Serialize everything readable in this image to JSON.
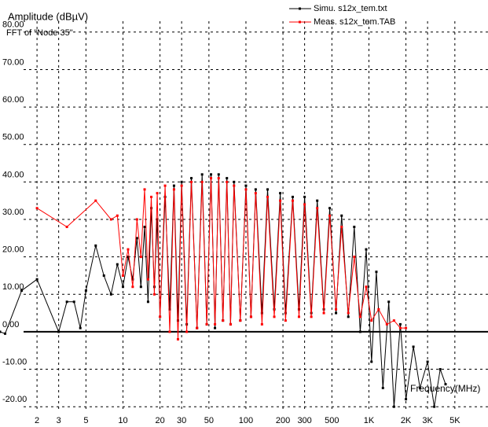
{
  "chart_data": {
    "type": "line",
    "title": "Amplitude (dBµV)",
    "subtitle": "FFT of \"Node 35\"",
    "x_label": "Frequency(MHz)",
    "log_x": true,
    "grid": true,
    "legend": "top-right",
    "xlim": [
      1,
      9300
    ],
    "ylim": [
      -20.8,
      80.8
    ],
    "xticks": [
      2,
      3,
      5,
      10,
      20,
      30,
      50,
      100,
      200,
      300,
      500,
      {
        "value": 1000,
        "label": "1K"
      },
      {
        "value": 2000,
        "label": "2K"
      },
      {
        "value": 3000,
        "label": "3K"
      },
      {
        "value": 5000,
        "label": "5K"
      }
    ],
    "yticks": [
      {
        "value": 80,
        "label": "80.00"
      },
      {
        "value": 70,
        "label": "70.00"
      },
      {
        "value": 60,
        "label": "60.00"
      },
      {
        "value": 50,
        "label": "50.00"
      },
      {
        "value": 40,
        "label": "40.00"
      },
      {
        "value": 30,
        "label": "30.00"
      },
      {
        "value": 20,
        "label": "20.00"
      },
      {
        "value": 10,
        "label": "10.00"
      },
      {
        "value": 0,
        "label": "0.00"
      },
      {
        "value": -10,
        "label": "-10.00"
      },
      {
        "value": -20,
        "label": "-20.00"
      }
    ],
    "series": [
      {
        "name": "Simu. s12x_tem.txt",
        "color": "#000000",
        "x": [
          1,
          1.1,
          1.5,
          2,
          3,
          3.5,
          4,
          4.5,
          5,
          6,
          7,
          8,
          9,
          10,
          11,
          12,
          13,
          14,
          15,
          16,
          17,
          18,
          19,
          20,
          22,
          24,
          26,
          28,
          30,
          33,
          36,
          40,
          44,
          48,
          52,
          56,
          60,
          65,
          70,
          75,
          80,
          90,
          100,
          110,
          120,
          135,
          150,
          170,
          190,
          210,
          240,
          270,
          300,
          340,
          380,
          430,
          480,
          540,
          600,
          680,
          760,
          850,
          950,
          1050,
          1150,
          1300,
          1450,
          1600,
          1800,
          2000,
          2300,
          2600,
          3000,
          3400,
          3800,
          4200
        ],
        "values": [
          0,
          -0.5,
          11,
          14,
          0,
          8,
          8,
          1,
          11,
          23,
          15,
          10,
          18,
          12,
          20,
          14,
          25,
          12,
          28,
          8,
          33,
          12,
          30,
          4,
          36,
          6,
          39,
          3,
          40,
          2,
          41,
          1,
          42,
          2,
          42,
          1,
          42,
          3,
          41,
          2,
          40,
          3,
          39,
          4,
          38,
          5,
          38,
          6,
          37,
          5,
          36,
          6,
          36,
          5,
          35,
          6,
          33,
          5,
          31,
          4,
          28,
          0,
          22,
          -8,
          16,
          -15,
          8,
          -20,
          2,
          -18,
          -4,
          -15,
          -8,
          -20,
          -10,
          -14
        ]
      },
      {
        "name": "Meas. s12x_tem.TAB",
        "color": "#ff0000",
        "x": [
          2,
          3.5,
          6,
          8,
          9,
          10,
          11,
          12,
          13,
          14,
          15,
          16,
          17,
          18,
          19,
          20,
          22,
          24,
          26,
          28,
          30,
          33,
          36,
          40,
          44,
          48,
          52,
          56,
          60,
          65,
          70,
          75,
          80,
          90,
          100,
          110,
          120,
          135,
          150,
          170,
          190,
          210,
          240,
          270,
          300,
          340,
          380,
          430,
          480,
          540,
          600,
          680,
          760,
          850,
          950,
          1050,
          1200,
          1400,
          1600,
          1800,
          2000
        ],
        "values": [
          33,
          28,
          35,
          30,
          31,
          15,
          22,
          12,
          30,
          20,
          38,
          14,
          36,
          10,
          37,
          4,
          39,
          0,
          38,
          -2,
          39,
          0,
          40,
          1,
          40,
          2,
          41,
          2,
          41,
          3,
          40,
          2,
          39,
          3,
          38,
          4,
          37,
          2,
          36,
          4,
          35,
          3,
          35,
          4,
          34,
          4,
          33,
          5,
          31,
          6,
          28,
          5,
          20,
          4,
          12,
          3,
          6,
          2,
          3,
          1,
          1
        ]
      }
    ]
  }
}
